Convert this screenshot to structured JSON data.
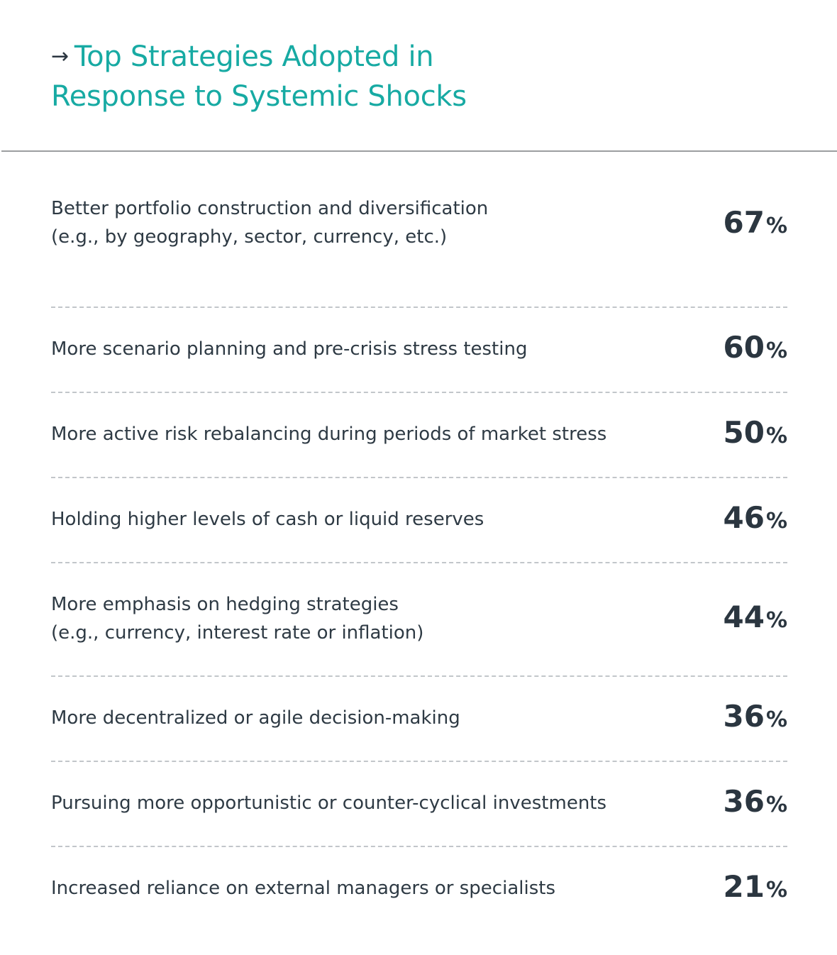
{
  "header": {
    "arrow": "→",
    "title_lines": [
      "Top Strategies Adopted in",
      "Response to Systemic Shocks"
    ]
  },
  "percent_sign": "%",
  "colors": {
    "title": "#17aaa3",
    "text": "#2e3a44",
    "value": "#2b3640",
    "divider": "#9c9ea0",
    "row_separator": "#c2c6ca"
  },
  "chart_data": {
    "type": "table",
    "title": "Top Strategies Adopted in Response to Systemic Shocks",
    "unit": "%",
    "rows": [
      {
        "label": [
          "Better portfolio construction and diversification",
          "(e.g., by geography, sector, currency, etc.)"
        ],
        "value": 67
      },
      {
        "label": [
          "More scenario planning and pre-crisis stress testing"
        ],
        "value": 60
      },
      {
        "label": [
          "More active risk rebalancing during periods of market stress"
        ],
        "value": 50
      },
      {
        "label": [
          "Holding higher levels of cash or liquid reserves"
        ],
        "value": 46
      },
      {
        "label": [
          "More emphasis on hedging strategies",
          "(e.g., currency, interest rate or inflation)"
        ],
        "value": 44
      },
      {
        "label": [
          "More decentralized or agile decision-making"
        ],
        "value": 36
      },
      {
        "label": [
          "Pursuing more opportunistic or counter-cyclical investments"
        ],
        "value": 36
      },
      {
        "label": [
          "Increased reliance on external managers or specialists"
        ],
        "value": 21
      }
    ]
  }
}
